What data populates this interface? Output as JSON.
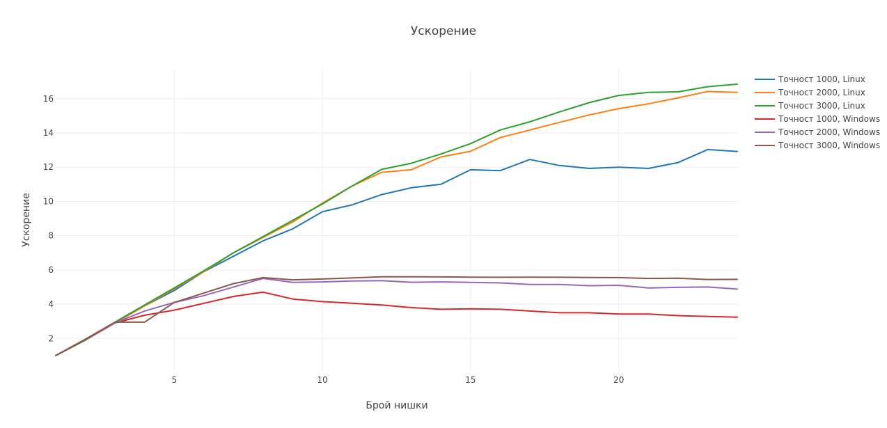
{
  "chart_data": {
    "type": "line",
    "title": "Ускорение",
    "xlabel": "Брой нишки",
    "ylabel": "Ускорение",
    "xlim": [
      1,
      24
    ],
    "ylim": [
      0.1,
      17.7
    ],
    "x_ticks": [
      5,
      10,
      15,
      20
    ],
    "y_ticks": [
      2,
      4,
      6,
      8,
      10,
      12,
      14,
      16
    ],
    "grid": true,
    "legend_position": "top-right",
    "x": [
      1,
      2,
      3,
      4,
      5,
      6,
      7,
      8,
      9,
      10,
      11,
      12,
      13,
      14,
      15,
      16,
      17,
      18,
      19,
      20,
      21,
      22,
      23,
      24
    ],
    "series": [
      {
        "name": "Точност 1000, Linux",
        "color": "#1f77b4",
        "values": [
          1.0,
          1.9,
          2.9,
          3.9,
          4.8,
          5.9,
          6.8,
          7.7,
          8.4,
          9.4,
          9.8,
          10.4,
          10.8,
          11.0,
          11.85,
          11.8,
          12.45,
          12.1,
          11.93,
          12.0,
          11.93,
          12.27,
          13.03,
          12.92
        ]
      },
      {
        "name": "Точност 2000, Linux",
        "color": "#ff7f0e",
        "values": [
          1.0,
          1.9,
          2.9,
          3.9,
          4.9,
          5.9,
          7.0,
          7.9,
          8.8,
          9.9,
          10.9,
          11.7,
          11.85,
          12.6,
          12.93,
          13.73,
          14.17,
          14.62,
          15.05,
          15.42,
          15.7,
          16.05,
          16.42,
          16.37
        ]
      },
      {
        "name": "Точност 3000, Linux",
        "color": "#2ca02c",
        "values": [
          1.0,
          1.9,
          2.95,
          3.95,
          4.95,
          5.95,
          7.0,
          7.95,
          8.9,
          9.85,
          10.9,
          11.87,
          12.23,
          12.77,
          13.38,
          14.17,
          14.65,
          15.23,
          15.77,
          16.19,
          16.37,
          16.4,
          16.7,
          16.85
        ]
      },
      {
        "name": "Точност 1000, Windows",
        "color": "#d62728",
        "values": [
          1.0,
          1.95,
          2.9,
          3.35,
          3.65,
          4.05,
          4.45,
          4.7,
          4.3,
          4.15,
          4.05,
          3.95,
          3.8,
          3.7,
          3.73,
          3.7,
          3.6,
          3.5,
          3.5,
          3.42,
          3.42,
          3.33,
          3.28,
          3.24
        ]
      },
      {
        "name": "Точност 2000, Windows",
        "color": "#9467bd",
        "values": [
          1.0,
          1.95,
          2.9,
          3.6,
          4.1,
          4.5,
          5.0,
          5.5,
          5.27,
          5.3,
          5.35,
          5.37,
          5.28,
          5.3,
          5.27,
          5.24,
          5.15,
          5.15,
          5.08,
          5.1,
          4.95,
          4.98,
          5.0,
          4.88
        ]
      },
      {
        "name": "Точност 3000, Windows",
        "color": "#8c564b",
        "values": [
          1.0,
          1.95,
          2.95,
          2.95,
          4.1,
          4.65,
          5.2,
          5.55,
          5.42,
          5.47,
          5.53,
          5.6,
          5.6,
          5.59,
          5.58,
          5.57,
          5.58,
          5.57,
          5.56,
          5.55,
          5.5,
          5.52,
          5.44,
          5.45
        ]
      }
    ]
  }
}
